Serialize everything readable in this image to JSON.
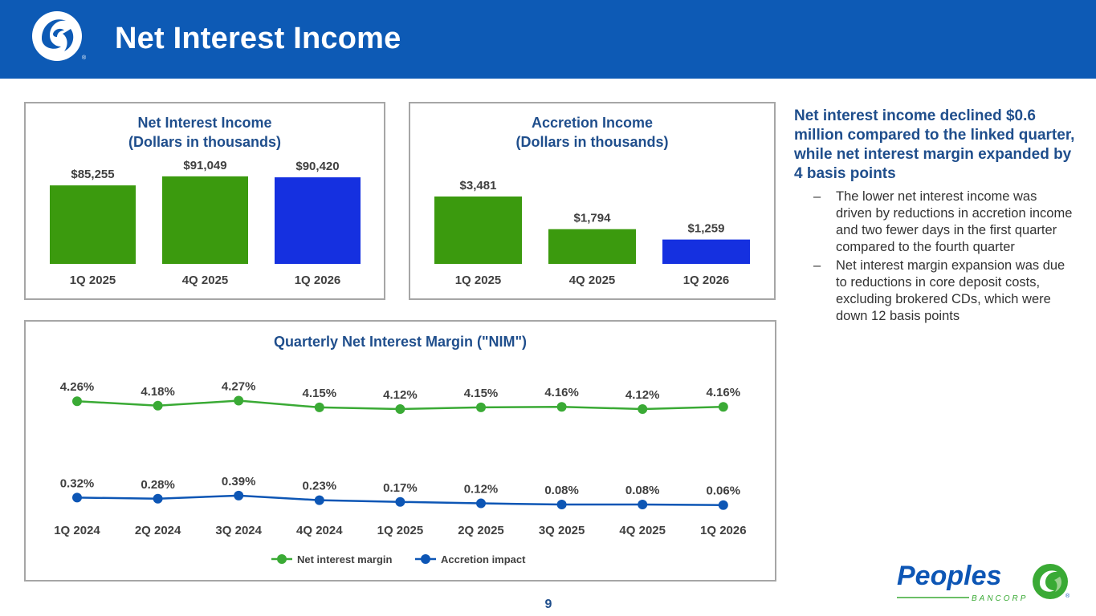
{
  "header": {
    "title": "Net Interest Income"
  },
  "colors": {
    "green": "#3b9a0e",
    "blue": "#1530e0",
    "nim_line": "#3aaa35",
    "acc_line": "#0d56b5",
    "header_bg": "#0d5ab5"
  },
  "chart_data": [
    {
      "id": "net-interest-income",
      "type": "bar",
      "title": [
        "Net Interest Income",
        "(Dollars in thousands)"
      ],
      "categories": [
        "1Q 2025",
        "4Q 2025",
        "1Q 2026"
      ],
      "values": [
        85255,
        91049,
        90420
      ],
      "labels": [
        "$85,255",
        "$91,049",
        "$90,420"
      ],
      "bar_colors": [
        "#3b9a0e",
        "#3b9a0e",
        "#1530e0"
      ],
      "ylim": [
        35000,
        92000
      ]
    },
    {
      "id": "accretion-income",
      "type": "bar",
      "title": [
        "Accretion Income",
        "(Dollars in thousands)"
      ],
      "categories": [
        "1Q 2025",
        "4Q 2025",
        "1Q 2026"
      ],
      "values": [
        3481,
        1794,
        1259
      ],
      "labels": [
        "$3,481",
        "$1,794",
        "$1,259"
      ],
      "bar_colors": [
        "#3b9a0e",
        "#3b9a0e",
        "#1530e0"
      ],
      "ylim": [
        0,
        3481
      ]
    },
    {
      "id": "quarterly-nim",
      "type": "line",
      "title": "Quarterly Net Interest Margin (\"NIM\")",
      "categories": [
        "1Q 2024",
        "2Q 2024",
        "3Q 2024",
        "4Q 2024",
        "1Q 2025",
        "2Q 2025",
        "3Q 2025",
        "4Q 2025",
        "1Q 2026"
      ],
      "series": [
        {
          "name": "Net interest margin",
          "values": [
            4.26,
            4.18,
            4.27,
            4.15,
            4.12,
            4.15,
            4.16,
            4.12,
            4.16
          ],
          "labels": [
            "4.26%",
            "4.18%",
            "4.27%",
            "4.15%",
            "4.12%",
            "4.15%",
            "4.16%",
            "4.12%",
            "4.16%"
          ],
          "color": "#3aaa35"
        },
        {
          "name": "Accretion impact",
          "values": [
            0.32,
            0.28,
            0.39,
            0.23,
            0.17,
            0.12,
            0.08,
            0.08,
            0.06
          ],
          "labels": [
            "0.32%",
            "0.28%",
            "0.39%",
            "0.23%",
            "0.17%",
            "0.12%",
            "0.08%",
            "0.08%",
            "0.06%"
          ],
          "color": "#0d56b5"
        }
      ],
      "legend": "bottom-center"
    }
  ],
  "commentary": {
    "headline": "Net interest income declined $0.6 million compared to the linked quarter, while net interest margin expanded by 4 basis points",
    "bullets": [
      "The lower net interest income was driven by reductions in accretion income and two fewer days in the first quarter compared to the fourth quarter",
      "Net interest margin expansion was due to reductions in core deposit costs, excluding brokered CDs, which were down 12 basis points"
    ],
    "bullet_marker": "–"
  },
  "footer": {
    "page_number": "9",
    "logo_word": "Peoples",
    "logo_sub": "BANCORP",
    "registered": "®"
  }
}
